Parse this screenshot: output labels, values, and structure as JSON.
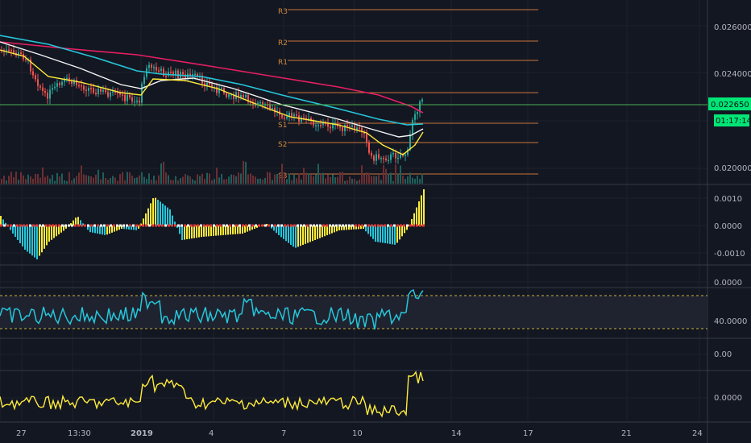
{
  "price_axis": {
    "ticks": [
      "0.026000",
      "0.024000",
      "0.020000"
    ],
    "current_price": "0.022650",
    "countdown": "01:17:14"
  },
  "pivots": [
    "R3",
    "R2",
    "R1",
    "S1",
    "S2",
    "S3"
  ],
  "osc1_axis": {
    "ticks": [
      "0.0010",
      "0.0000",
      "-0.0010"
    ]
  },
  "osc2_axis": {
    "ticks": [
      "0.0000"
    ]
  },
  "osc3_axis": {
    "ticks": [
      "40.0000"
    ]
  },
  "osc4_axis": {
    "ticks": [
      "0.00"
    ]
  },
  "osc5_axis": {
    "ticks": [
      "0.0000"
    ]
  },
  "time_axis": {
    "labels": [
      {
        "text": "27",
        "bold": false
      },
      {
        "text": "13:30",
        "bold": false
      },
      {
        "text": "2019",
        "bold": true
      },
      {
        "text": "4",
        "bold": false
      },
      {
        "text": "7",
        "bold": false
      },
      {
        "text": "10",
        "bold": false
      },
      {
        "text": "14",
        "bold": false
      },
      {
        "text": "17",
        "bold": false
      },
      {
        "text": "21",
        "bold": false
      },
      {
        "text": "24",
        "bold": false
      }
    ]
  },
  "colors": {
    "background": "#131722",
    "grid": "#1e222d",
    "divider": "#363a45",
    "up": "#26a69a",
    "down": "#ef5350",
    "pivot": "#c8763a",
    "ema_pink": "#e91e63",
    "ema_cyan": "#26c6da",
    "ema_white": "#f5f5f5",
    "ema_yellow": "#ffeb3b",
    "price_line": "#4caf50",
    "badge": "#00e676",
    "rsi": "#26c6da",
    "osc_yellow": "#ffeb3b"
  }
}
